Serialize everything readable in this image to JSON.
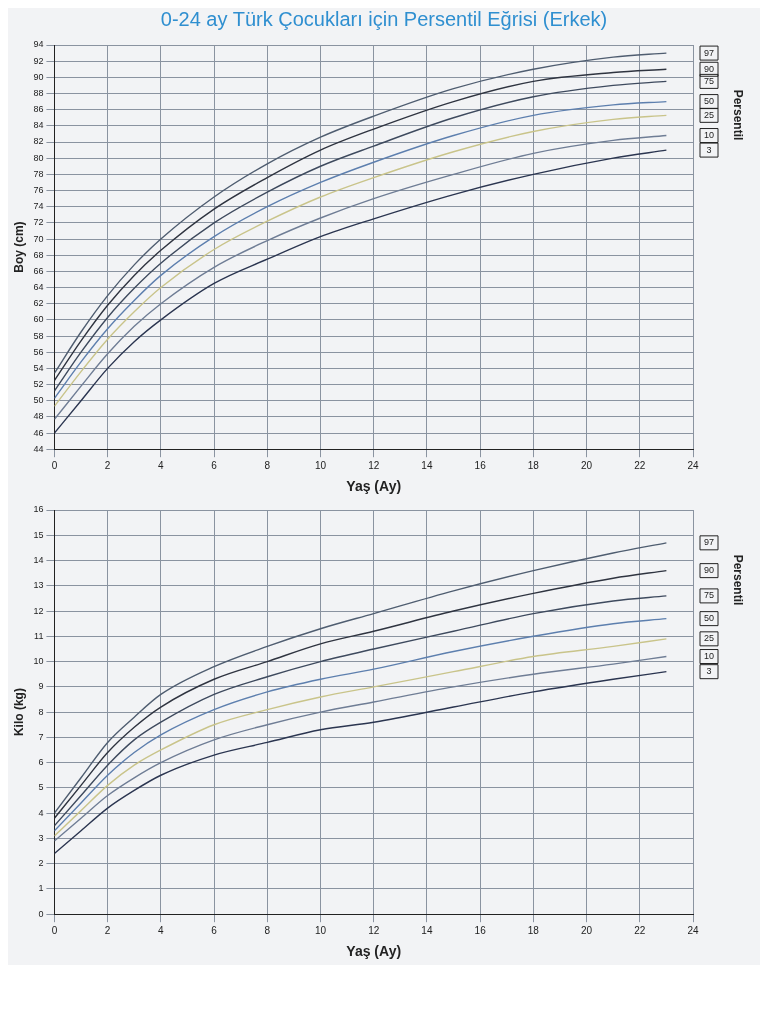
{
  "chart_data": [
    {
      "type": "line",
      "title": "0-24 ay Türk Çocukları için Persentil Eğrisi (Erkek)",
      "xlabel": "Yaş (Ay)",
      "ylabel": "Boy (cm)",
      "legend_title": "Persentil",
      "xlim": [
        0,
        24
      ],
      "xticks": [
        0,
        2,
        4,
        6,
        8,
        10,
        12,
        14,
        16,
        18,
        20,
        22,
        24
      ],
      "ylim": [
        44,
        94
      ],
      "yticks": [
        44,
        46,
        48,
        50,
        52,
        54,
        56,
        58,
        60,
        62,
        64,
        66,
        68,
        70,
        72,
        74,
        76,
        78,
        80,
        82,
        84,
        86,
        88,
        90,
        92,
        94
      ],
      "grid": true,
      "marker": "none",
      "line_style": "solid",
      "x": [
        0,
        1,
        2,
        3,
        4,
        6,
        8,
        10,
        12,
        15,
        18,
        21,
        23
      ],
      "series": [
        {
          "name": "3",
          "color": "#2b3550",
          "values": [
            46,
            50,
            54,
            57.3,
            60,
            64.5,
            67.5,
            70.3,
            72.5,
            75.5,
            78,
            80,
            81
          ]
        },
        {
          "name": "10",
          "color": "#6f7d95",
          "values": [
            47.7,
            51.8,
            55.8,
            59.2,
            62,
            66.5,
            69.8,
            72.6,
            75,
            78,
            80.6,
            82.2,
            82.8
          ]
        },
        {
          "name": "25",
          "color": "#c9c48a",
          "values": [
            49.3,
            53.6,
            57.6,
            61,
            64,
            68.7,
            72.2,
            75.2,
            77.6,
            80.8,
            83.3,
            84.8,
            85.3
          ]
        },
        {
          "name": "50",
          "color": "#5d7fae",
          "values": [
            50.3,
            54.8,
            58.9,
            62.4,
            65.5,
            70.3,
            74,
            77,
            79.5,
            82.8,
            85.3,
            86.6,
            87
          ]
        },
        {
          "name": "75",
          "color": "#3e4a5e",
          "values": [
            51.2,
            56,
            60.3,
            63.9,
            67,
            72,
            75.8,
            79,
            81.5,
            85,
            87.6,
            89,
            89.5
          ]
        },
        {
          "name": "90",
          "color": "#2f3440",
          "values": [
            52.5,
            57.4,
            61.8,
            65.5,
            68.6,
            73.7,
            77.6,
            81,
            83.6,
            87,
            89.5,
            90.6,
            91
          ]
        },
        {
          "name": "97",
          "color": "#4f5d70",
          "values": [
            53.4,
            58.5,
            63,
            66.8,
            70,
            75.2,
            79.3,
            82.6,
            85.2,
            88.6,
            91,
            92.5,
            93
          ]
        }
      ]
    },
    {
      "type": "line",
      "xlabel": "Yaş (Ay)",
      "ylabel": "Kilo (kg)",
      "legend_title": "Persentil",
      "xlim": [
        0,
        24
      ],
      "xticks": [
        0,
        2,
        4,
        6,
        8,
        10,
        12,
        14,
        16,
        18,
        20,
        22,
        24
      ],
      "ylim": [
        0,
        16
      ],
      "yticks": [
        0,
        1,
        2,
        3,
        4,
        5,
        6,
        7,
        8,
        9,
        10,
        11,
        12,
        13,
        14,
        15,
        16
      ],
      "grid": true,
      "marker": "none",
      "line_style": "solid",
      "x": [
        0,
        1,
        2,
        3,
        4,
        6,
        8,
        10,
        12,
        15,
        18,
        21,
        23
      ],
      "series": [
        {
          "name": "3",
          "color": "#2b3550",
          "values": [
            2.4,
            3.3,
            4.2,
            4.9,
            5.5,
            6.3,
            6.8,
            7.3,
            7.6,
            8.2,
            8.8,
            9.3,
            9.6
          ]
        },
        {
          "name": "10",
          "color": "#6f7d95",
          "values": [
            2.9,
            3.8,
            4.7,
            5.4,
            6.0,
            6.9,
            7.5,
            8.0,
            8.4,
            9.0,
            9.5,
            9.9,
            10.2
          ]
        },
        {
          "name": "25",
          "color": "#c9c48a",
          "values": [
            3.1,
            4.1,
            5.1,
            5.9,
            6.5,
            7.5,
            8.1,
            8.6,
            9.0,
            9.6,
            10.2,
            10.6,
            10.9
          ]
        },
        {
          "name": "50",
          "color": "#5d7fae",
          "values": [
            3.3,
            4.4,
            5.5,
            6.4,
            7.1,
            8.1,
            8.8,
            9.3,
            9.7,
            10.4,
            11.0,
            11.5,
            11.7
          ]
        },
        {
          "name": "75",
          "color": "#3e4a5e",
          "values": [
            3.5,
            4.7,
            5.9,
            6.9,
            7.6,
            8.7,
            9.4,
            10.0,
            10.5,
            11.2,
            11.9,
            12.4,
            12.6
          ]
        },
        {
          "name": "90",
          "color": "#2f3440",
          "values": [
            3.8,
            5.1,
            6.4,
            7.4,
            8.2,
            9.3,
            10.0,
            10.7,
            11.2,
            12.0,
            12.7,
            13.3,
            13.6
          ]
        },
        {
          "name": "97",
          "color": "#4f5d70",
          "values": [
            4.0,
            5.4,
            6.8,
            7.8,
            8.7,
            9.8,
            10.6,
            11.3,
            11.9,
            12.8,
            13.6,
            14.3,
            14.7
          ]
        }
      ]
    }
  ]
}
